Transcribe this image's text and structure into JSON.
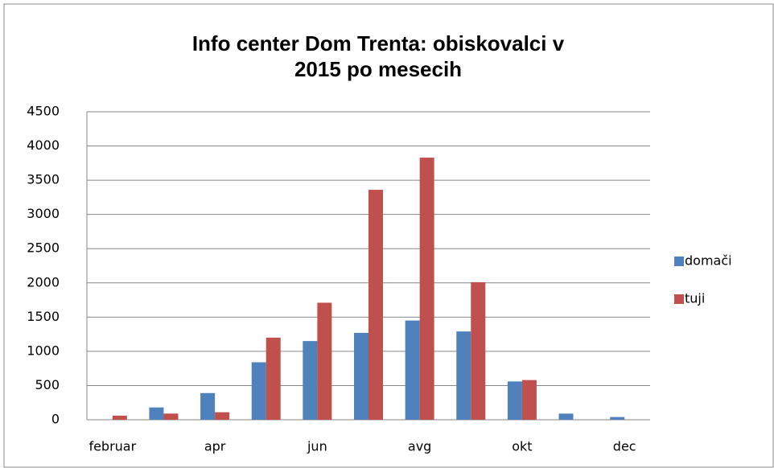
{
  "chart_data": {
    "type": "bar",
    "title": "Info center Dom Trenta: obiskovalci v 2015 po mesecih",
    "categories": [
      "februar",
      null,
      "apr",
      null,
      "jun",
      null,
      "avg",
      null,
      "okt",
      null,
      "dec"
    ],
    "series": [
      {
        "name": "domači",
        "color": "#4f81bd",
        "values": [
          0,
          180,
          390,
          840,
          1150,
          1270,
          1450,
          1290,
          560,
          90,
          40
        ]
      },
      {
        "name": "tuji",
        "color": "#c0504d",
        "values": [
          60,
          90,
          110,
          1200,
          1710,
          3360,
          3830,
          2010,
          580,
          0,
          0
        ]
      }
    ],
    "ylim": [
      0,
      4500
    ],
    "yticks": [
      0,
      500,
      1000,
      1500,
      2000,
      2500,
      3000,
      3500,
      4000,
      4500
    ],
    "grid": true,
    "legend": "right"
  }
}
